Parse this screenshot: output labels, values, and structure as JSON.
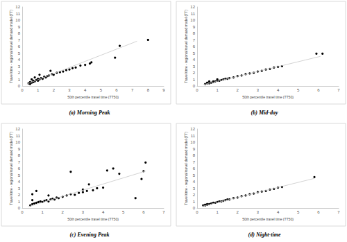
{
  "chart_data": [
    {
      "type": "scatter",
      "title": "(a) Morning Peak",
      "x_label": "50th percentile travel time (TT50)",
      "y_label": "Travel time - regional travel demand model (TT)",
      "xlim": [
        0,
        9
      ],
      "xticks": [
        0,
        1,
        2,
        3,
        4,
        5,
        6,
        7,
        8,
        9
      ],
      "ylim": [
        0,
        12
      ],
      "yticks": [
        0,
        1,
        2,
        3,
        4,
        5,
        6,
        7,
        8,
        9,
        10,
        11,
        12
      ],
      "grid": false,
      "series": [
        {
          "type": "scatter",
          "color": "#000000",
          "marker": "circle",
          "x": [
            0.4,
            0.5,
            0.5,
            0.6,
            0.7,
            0.7,
            0.8,
            0.9,
            1.0,
            1.0,
            1.1,
            1.2,
            1.3,
            1.4,
            1.5,
            1.6,
            1.7,
            1.9,
            2.0,
            2.2,
            2.4,
            2.6,
            2.8,
            3.0,
            3.2,
            3.4,
            3.7,
            4.0,
            4.3,
            0.6,
            0.8,
            1.1,
            1.8,
            4.4,
            5.9,
            6.2,
            8.0
          ],
          "values": [
            0.4,
            0.6,
            0.3,
            0.5,
            0.8,
            0.6,
            0.7,
            0.9,
            0.8,
            1.1,
            1.0,
            1.2,
            1.1,
            1.4,
            1.3,
            1.5,
            1.6,
            1.8,
            1.7,
            2.0,
            2.1,
            2.2,
            2.4,
            2.5,
            2.7,
            2.8,
            3.1,
            3.2,
            3.4,
            1.0,
            1.3,
            1.7,
            2.3,
            3.6,
            4.3,
            6.1,
            7.0
          ]
        },
        {
          "type": "line",
          "color": "#c8c8c8",
          "line_style": "solid",
          "x": [
            0.3,
            7.3
          ],
          "values": [
            0.3,
            6.8
          ]
        }
      ]
    },
    {
      "type": "scatter",
      "title": "(b) Mid-day",
      "x_label": "50th percentile travel time (TT50)",
      "y_label": "Travel time - regional travel demand model (TT)",
      "xlim": [
        0,
        7
      ],
      "xticks": [
        0,
        1,
        2,
        3,
        4,
        5,
        6,
        7
      ],
      "ylim": [
        0,
        12
      ],
      "yticks": [
        0,
        1,
        2,
        3,
        4,
        5,
        6,
        7,
        8,
        9,
        10,
        11,
        12
      ],
      "grid": false,
      "series": [
        {
          "type": "scatter",
          "color": "#000000",
          "marker": "circle",
          "x": [
            0.4,
            0.5,
            0.5,
            0.6,
            0.7,
            0.8,
            0.8,
            0.9,
            1.0,
            1.1,
            1.2,
            1.3,
            1.4,
            1.5,
            1.6,
            1.8,
            2.0,
            2.2,
            2.4,
            2.6,
            2.8,
            3.0,
            3.2,
            3.4,
            3.6,
            3.8,
            4.0,
            4.2,
            0.6,
            1.0,
            5.9,
            6.2
          ],
          "values": [
            0.3,
            0.4,
            0.5,
            0.4,
            0.5,
            0.6,
            0.7,
            0.7,
            0.8,
            0.8,
            0.9,
            1.0,
            1.1,
            1.1,
            1.2,
            1.3,
            1.5,
            1.6,
            1.8,
            1.9,
            2.0,
            2.2,
            2.3,
            2.5,
            2.6,
            2.8,
            2.9,
            3.0,
            0.7,
            1.0,
            4.9,
            4.9
          ]
        },
        {
          "type": "line",
          "color": "#c8c8c8",
          "line_style": "solid",
          "x": [
            0.3,
            6.1
          ],
          "values": [
            0.2,
            4.5
          ]
        }
      ]
    },
    {
      "type": "scatter",
      "title": "(c) Evening Peak",
      "x_label": "50th percentile travel time (TT50)",
      "y_label": "Travel time - regional travel demand model (TT)",
      "xlim": [
        0,
        7
      ],
      "xticks": [
        0,
        1,
        2,
        3,
        4,
        5,
        6,
        7
      ],
      "ylim": [
        0,
        12
      ],
      "yticks": [
        0,
        1,
        2,
        3,
        4,
        5,
        6,
        7,
        8,
        9,
        10,
        11,
        12
      ],
      "grid": false,
      "series": [
        {
          "type": "scatter",
          "color": "#000000",
          "marker": "circle",
          "x": [
            0.4,
            0.5,
            0.5,
            0.6,
            0.7,
            0.8,
            0.9,
            1.0,
            1.1,
            1.2,
            1.3,
            1.4,
            1.5,
            1.6,
            1.7,
            1.8,
            2.0,
            2.2,
            2.4,
            2.6,
            2.8,
            3.0,
            3.2,
            3.5,
            3.7,
            4.0,
            0.5,
            0.7,
            1.3,
            2.4,
            3.0,
            3.3,
            4.2,
            4.5,
            4.8,
            5.6,
            5.9,
            6.0,
            6.1
          ],
          "values": [
            0.4,
            0.6,
            1.2,
            0.7,
            0.8,
            0.9,
            1.0,
            0.9,
            1.1,
            1.2,
            1.0,
            1.3,
            1.4,
            1.3,
            1.6,
            1.5,
            1.7,
            1.9,
            2.1,
            2.0,
            2.3,
            2.4,
            2.6,
            2.7,
            3.0,
            3.1,
            2.1,
            2.6,
            1.9,
            5.5,
            2.8,
            3.6,
            5.7,
            6.0,
            5.2,
            1.5,
            4.4,
            5.6,
            6.9
          ]
        },
        {
          "type": "line",
          "color": "#c8c8c8",
          "line_style": "solid",
          "x": [
            0.3,
            6.1
          ],
          "values": [
            0.2,
            5.6
          ]
        }
      ]
    },
    {
      "type": "scatter",
      "title": "(d) Night-time",
      "x_label": "50th percentile travel time (TT50)",
      "y_label": "Travel time - regional travel demand model (TT)",
      "xlim": [
        0,
        7
      ],
      "xticks": [
        0,
        1,
        2,
        3,
        4,
        5,
        6,
        7
      ],
      "ylim": [
        0,
        12
      ],
      "yticks": [
        0,
        1,
        2,
        3,
        4,
        5,
        6,
        7,
        8,
        9,
        10,
        11,
        12
      ],
      "grid": false,
      "series": [
        {
          "type": "scatter",
          "color": "#000000",
          "marker": "circle",
          "x": [
            0.3,
            0.4,
            0.4,
            0.5,
            0.5,
            0.6,
            0.7,
            0.8,
            0.9,
            1.0,
            1.1,
            1.2,
            1.3,
            1.4,
            1.5,
            1.6,
            1.8,
            2.0,
            2.2,
            2.4,
            2.6,
            2.8,
            3.0,
            3.2,
            3.4,
            3.6,
            3.8,
            4.0,
            4.2,
            5.8
          ],
          "values": [
            0.4,
            0.4,
            0.5,
            0.5,
            0.6,
            0.6,
            0.7,
            0.8,
            0.8,
            0.9,
            1.0,
            1.0,
            1.1,
            1.2,
            1.3,
            1.3,
            1.5,
            1.6,
            1.8,
            1.9,
            2.1,
            2.2,
            2.4,
            2.5,
            2.6,
            2.8,
            2.9,
            3.1,
            3.2,
            4.7
          ]
        },
        {
          "type": "line",
          "color": "#c8c8c8",
          "line_style": "solid",
          "x": [
            0.3,
            5.8
          ],
          "values": [
            0.3,
            4.5
          ]
        }
      ]
    }
  ]
}
